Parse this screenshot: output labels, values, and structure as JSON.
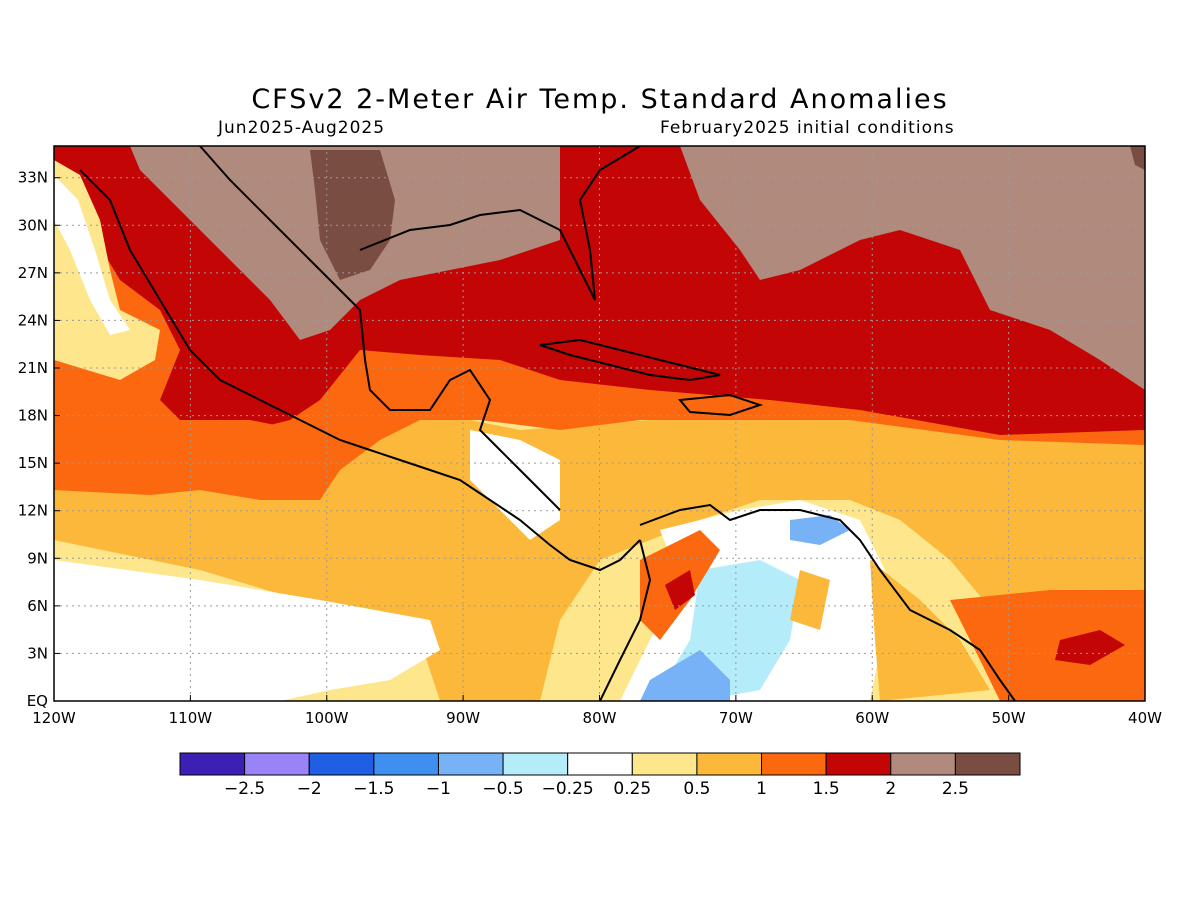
{
  "title": "CFSv2 2-Meter Air Temp. Standard Anomalies",
  "period": "Jun2025-Aug2025",
  "init": "February2025 initial conditions",
  "lat_labels": [
    "33N",
    "30N",
    "27N",
    "24N",
    "21N",
    "18N",
    "15N",
    "12N",
    "9N",
    "6N",
    "3N",
    "EQ"
  ],
  "lon_labels": [
    "120W",
    "110W",
    "100W",
    "90W",
    "80W",
    "70W",
    "60W",
    "50W",
    "40W"
  ],
  "legend": {
    "colors": [
      "#3c1fb4",
      "#9a82f7",
      "#1e5fe3",
      "#3f8ff0",
      "#76b2f5",
      "#b4ecfa",
      "#ffffff",
      "#fde68c",
      "#fbb83a",
      "#fb6810",
      "#c30505",
      "#b08a7c",
      "#7a4d42"
    ],
    "labels": [
      "-2.5",
      "-2",
      "-1.5",
      "-1",
      "-0.5",
      "-0.25",
      "0.25",
      "0.5",
      "1",
      "1.5",
      "2",
      "2.5"
    ]
  }
}
